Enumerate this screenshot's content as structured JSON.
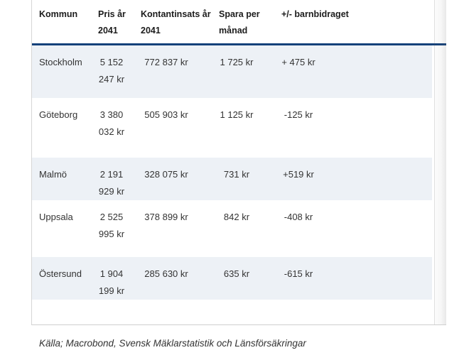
{
  "chart_data": {
    "type": "table",
    "title": "",
    "columns": [
      "Kommun",
      "Pris år 2041",
      "Kontantinsats år 2041",
      "Spara per månad",
      "+/- barnbidraget"
    ],
    "header_wrap": [
      [
        "Kommun",
        ""
      ],
      [
        "Pris år",
        "2041"
      ],
      [
        "Kontantinsats år",
        "2041"
      ],
      [
        "Spara per",
        "månad"
      ],
      [
        "+/- barnbidraget",
        ""
      ]
    ],
    "rows": [
      [
        "Stockholm",
        "5 152 247 kr",
        "772 837 kr",
        "1 725 kr",
        "+ 475 kr"
      ],
      [
        "Göteborg",
        "3 380 032 kr",
        "505 903 kr",
        "1 125 kr",
        "-125 kr"
      ],
      [
        "Malmö",
        "2 191 929 kr",
        "328 075 kr",
        "731 kr",
        "+519 kr"
      ],
      [
        "Uppsala",
        "2 525 995 kr",
        "378 899 kr",
        "842 kr",
        "-408 kr"
      ],
      [
        "Östersund",
        "1 904 199 kr",
        "285 630 kr",
        "635 kr",
        "-615 kr"
      ]
    ],
    "caption": "Källa; Macrobond, Svensk Mäklarstatistik och Länsförsäkringar",
    "layout_hints": {
      "striped_rows": [
        0,
        2,
        4
      ],
      "header_divider": true,
      "scrollbar": "right"
    }
  },
  "colors": {
    "header_rule": "#14417a",
    "row_stripe": "#edf1f6",
    "header_text": "#1c1c1c",
    "body_text": "#333333",
    "widget_border": "#d6d6d6",
    "background": "#ffffff"
  }
}
